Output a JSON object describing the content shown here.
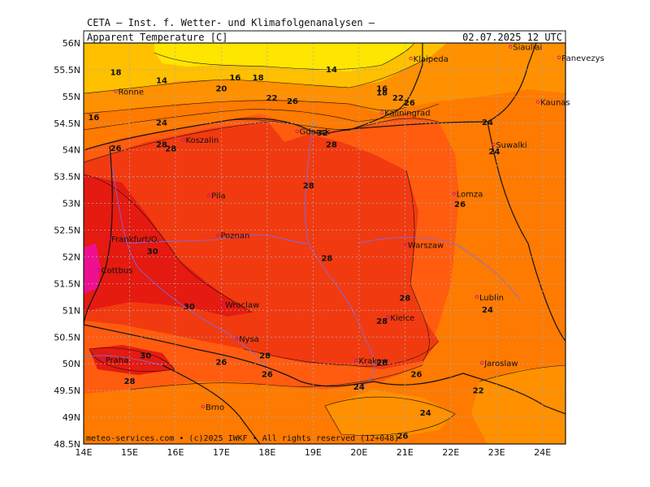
{
  "header": {
    "title": "CETA — Inst. f. Wetter- und Klimafolgenanalysen —",
    "field": "Apparent_Temperature [C]",
    "valid": "02.07.2025 12 UTC"
  },
  "footer": {
    "copyright": "meteo-services.com • (c)2025 IWKF • All rights reserved (12+048)"
  },
  "axes": {
    "lat_ticks": [
      "56N",
      "55.5N",
      "55N",
      "54.5N",
      "54N",
      "53.5N",
      "53N",
      "52.5N",
      "52N",
      "51.5N",
      "51N",
      "50.5N",
      "50N",
      "49.5N",
      "49N",
      "48.5N"
    ],
    "lon_ticks": [
      "14E",
      "15E",
      "16E",
      "17E",
      "18E",
      "19E",
      "20E",
      "21E",
      "22E",
      "23E",
      "24E"
    ],
    "lat_range": [
      48.5,
      56
    ],
    "lon_range": [
      14,
      24.5
    ]
  },
  "colors": {
    "c14": "#ffe600",
    "c18": "#ffc000",
    "c22": "#ff9000",
    "c24": "#ff7a00",
    "c26": "#ff5c10",
    "c28": "#f23a10",
    "c30": "#e51a10",
    "c32": "#ee1090",
    "border": "#111111",
    "river": "#7070ff"
  },
  "cities": [
    {
      "name": "Siauliai",
      "lat": 55.93,
      "lon": 23.3
    },
    {
      "name": "Klaipeda",
      "lat": 55.71,
      "lon": 21.13
    },
    {
      "name": "Panevezys",
      "lat": 55.73,
      "lon": 24.36
    },
    {
      "name": "Ronne",
      "lat": 55.1,
      "lon": 14.7
    },
    {
      "name": "Kaunas",
      "lat": 54.9,
      "lon": 23.9
    },
    {
      "name": "Kaliningrad",
      "lat": 54.7,
      "lon": 20.5
    },
    {
      "name": "Gdansk",
      "lat": 54.35,
      "lon": 18.65
    },
    {
      "name": "Koszalin",
      "lat": 54.19,
      "lon": 16.17
    },
    {
      "name": "Suwalki",
      "lat": 54.1,
      "lon": 22.93
    },
    {
      "name": "Lomza",
      "lat": 53.18,
      "lon": 22.07
    },
    {
      "name": "Pila",
      "lat": 53.15,
      "lon": 16.73
    },
    {
      "name": "Poznan",
      "lat": 52.41,
      "lon": 16.93
    },
    {
      "name": "Frankfurt/O.",
      "lat": 52.34,
      "lon": 14.55
    },
    {
      "name": "Warszaw",
      "lat": 52.23,
      "lon": 21.01
    },
    {
      "name": "Cottbus",
      "lat": 51.76,
      "lon": 14.33
    },
    {
      "name": "Lublin",
      "lat": 51.25,
      "lon": 22.57
    },
    {
      "name": "Wroclaw",
      "lat": 51.11,
      "lon": 17.03
    },
    {
      "name": "Kielce",
      "lat": 50.87,
      "lon": 20.63
    },
    {
      "name": "Nysa",
      "lat": 50.47,
      "lon": 17.33
    },
    {
      "name": "Praha",
      "lat": 50.08,
      "lon": 14.42
    },
    {
      "name": "Krakow",
      "lat": 50.06,
      "lon": 19.94
    },
    {
      "name": "Jaroslaw",
      "lat": 50.02,
      "lon": 22.68
    },
    {
      "name": "Brno",
      "lat": 49.2,
      "lon": 16.6
    }
  ],
  "contour_labels": [
    {
      "v": "18",
      "lat": 55.4,
      "lon": 14.7
    },
    {
      "v": "14",
      "lat": 55.25,
      "lon": 15.7
    },
    {
      "v": "16",
      "lat": 55.3,
      "lon": 17.3
    },
    {
      "v": "18",
      "lat": 55.3,
      "lon": 17.8
    },
    {
      "v": "14",
      "lat": 55.45,
      "lon": 19.4
    },
    {
      "v": "20",
      "lat": 55.1,
      "lon": 17.0
    },
    {
      "v": "16",
      "lat": 55.1,
      "lon": 20.5
    },
    {
      "v": "18",
      "lat": 55.02,
      "lon": 20.5
    },
    {
      "v": "22",
      "lat": 54.92,
      "lon": 18.1
    },
    {
      "v": "26",
      "lat": 54.86,
      "lon": 18.55
    },
    {
      "v": "22",
      "lat": 54.92,
      "lon": 20.85
    },
    {
      "v": "26",
      "lat": 54.83,
      "lon": 21.1
    },
    {
      "v": "16",
      "lat": 54.56,
      "lon": 14.22
    },
    {
      "v": "24",
      "lat": 54.46,
      "lon": 15.7
    },
    {
      "v": "32",
      "lat": 54.27,
      "lon": 19.2
    },
    {
      "v": "28",
      "lat": 54.05,
      "lon": 19.4
    },
    {
      "v": "26",
      "lat": 53.98,
      "lon": 14.7
    },
    {
      "v": "28",
      "lat": 54.05,
      "lon": 15.7
    },
    {
      "v": "28",
      "lat": 53.97,
      "lon": 15.9
    },
    {
      "v": "24",
      "lat": 54.47,
      "lon": 22.8
    },
    {
      "v": "24",
      "lat": 53.92,
      "lon": 22.95
    },
    {
      "v": "28",
      "lat": 53.28,
      "lon": 18.9
    },
    {
      "v": "26",
      "lat": 52.93,
      "lon": 22.2
    },
    {
      "v": "30",
      "lat": 52.05,
      "lon": 15.5
    },
    {
      "v": "28",
      "lat": 51.92,
      "lon": 19.3
    },
    {
      "v": "28",
      "lat": 51.18,
      "lon": 21.0
    },
    {
      "v": "30",
      "lat": 51.02,
      "lon": 16.3
    },
    {
      "v": "24",
      "lat": 50.96,
      "lon": 22.8
    },
    {
      "v": "28",
      "lat": 50.75,
      "lon": 20.5
    },
    {
      "v": "30",
      "lat": 50.1,
      "lon": 15.35
    },
    {
      "v": "26",
      "lat": 49.98,
      "lon": 17.0
    },
    {
      "v": "28",
      "lat": 50.1,
      "lon": 17.95
    },
    {
      "v": "28",
      "lat": 49.97,
      "lon": 20.5
    },
    {
      "v": "26",
      "lat": 49.75,
      "lon": 21.25
    },
    {
      "v": "26",
      "lat": 49.75,
      "lon": 18.0
    },
    {
      "v": "28",
      "lat": 49.62,
      "lon": 15.0
    },
    {
      "v": "24",
      "lat": 49.52,
      "lon": 20.0
    },
    {
      "v": "22",
      "lat": 49.45,
      "lon": 22.6
    },
    {
      "v": "24",
      "lat": 49.03,
      "lon": 21.45
    },
    {
      "v": "26",
      "lat": 48.6,
      "lon": 20.95
    }
  ]
}
